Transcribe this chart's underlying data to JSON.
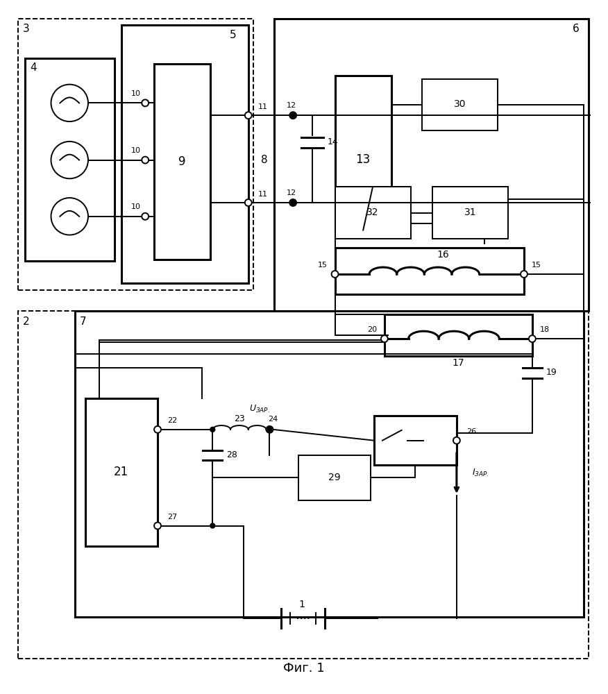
{
  "title": "Фиг. 1",
  "bg_color": "#ffffff",
  "lw": 1.4,
  "lw2": 2.2
}
